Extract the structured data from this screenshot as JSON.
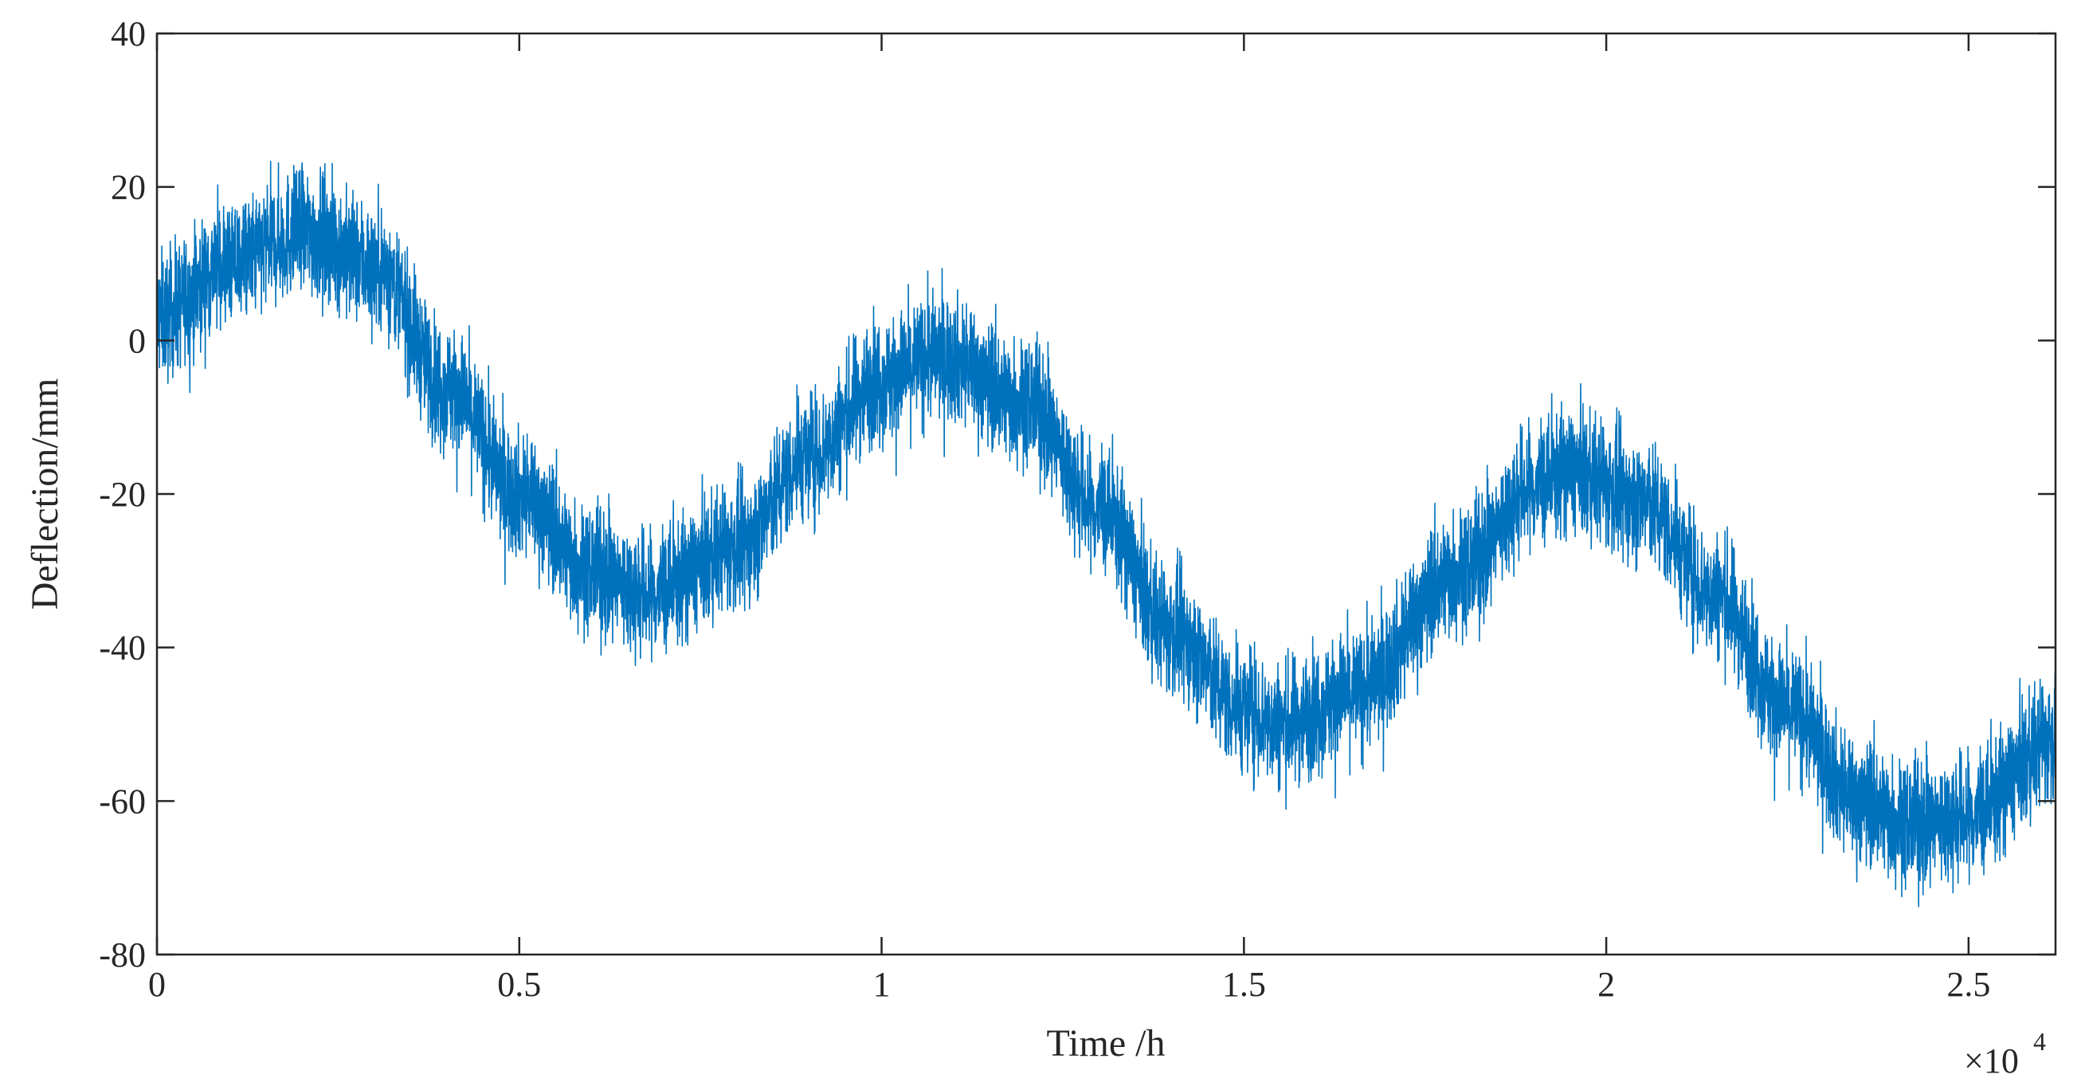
{
  "chart_data": {
    "type": "line",
    "xlabel": "Time /h",
    "ylabel": "Deflection/mm",
    "x_exponent_label": "×10",
    "x_exponent_power": "4",
    "xlim": [
      0,
      26200
    ],
    "ylim": [
      -80,
      40
    ],
    "x_ticks": [
      0,
      5000,
      10000,
      15000,
      20000,
      25000
    ],
    "x_tick_labels": [
      "0",
      "0.5",
      "1",
      "1.5",
      "2",
      "2.5"
    ],
    "y_ticks": [
      -80,
      -60,
      -40,
      -20,
      0,
      20,
      40
    ],
    "y_tick_labels": [
      "-80",
      "-60",
      "-40",
      "-20",
      "0",
      "20",
      "40"
    ],
    "grid": false,
    "series_color": "#0072BD",
    "series": [
      {
        "description_free": true,
        "trend_x": [
          0,
          1000,
          2000,
          3000,
          4000,
          5000,
          6000,
          6800,
          8000,
          9000,
          10000,
          10800,
          12000,
          13000,
          14000,
          15000,
          15500,
          16500,
          18000,
          19000,
          19500,
          20500,
          21500,
          22500,
          23500,
          24200,
          25000,
          26200
        ],
        "trend_y": [
          3,
          10,
          14,
          10,
          -6,
          -20,
          -30,
          -33,
          -27,
          -15,
          -5,
          -2,
          -8,
          -22,
          -38,
          -48,
          -50,
          -46,
          -30,
          -19,
          -17,
          -21,
          -33,
          -48,
          -60,
          -63,
          -62,
          -52
        ],
        "noise_band": 9
      }
    ]
  }
}
